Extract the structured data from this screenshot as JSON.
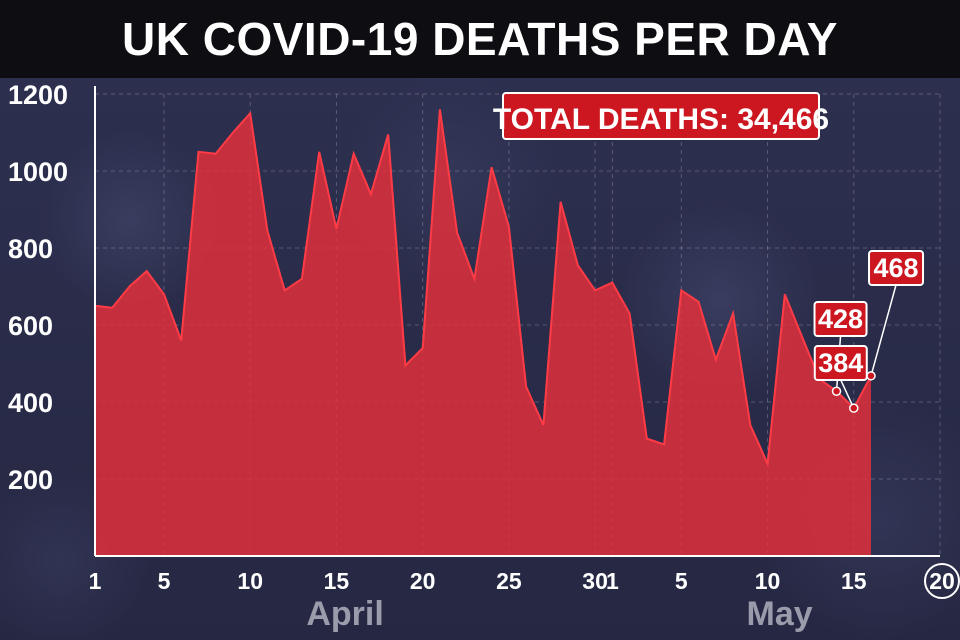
{
  "title": "UK COVID-19 DEATHS PER DAY",
  "total_label": "TOTAL DEATHS: 34,466",
  "colors": {
    "area": "#e8303a",
    "line": "#ff3b45",
    "box": "#cc1720",
    "title_bg": "#0d0d12",
    "bg": "#2b2d4a"
  },
  "chart_data": {
    "type": "area",
    "title": "UK COVID-19 DEATHS PER DAY",
    "xlabel": "",
    "ylabel": "",
    "ylim": [
      0,
      1200
    ],
    "yticks": [
      200,
      400,
      600,
      800,
      1000,
      1200
    ],
    "grid": true,
    "x_ticks": [
      {
        "day": 1,
        "label": "1"
      },
      {
        "day": 5,
        "label": "5"
      },
      {
        "day": 10,
        "label": "10"
      },
      {
        "day": 15,
        "label": "15"
      },
      {
        "day": 20,
        "label": "20"
      },
      {
        "day": 25,
        "label": "25"
      },
      {
        "day": 30,
        "label": "30"
      },
      {
        "day": 31,
        "label": "1"
      },
      {
        "day": 35,
        "label": "5"
      },
      {
        "day": 40,
        "label": "10"
      },
      {
        "day": 45,
        "label": "15"
      },
      {
        "day": 50,
        "label": "20",
        "circled": true
      }
    ],
    "months": [
      {
        "label": "April",
        "day": 15.5
      },
      {
        "label": "May",
        "day": 40.7
      }
    ],
    "days": [
      1,
      2,
      3,
      4,
      5,
      6,
      7,
      8,
      9,
      10,
      11,
      12,
      13,
      14,
      15,
      16,
      17,
      18,
      19,
      20,
      21,
      22,
      23,
      24,
      25,
      26,
      27,
      28,
      29,
      30,
      31,
      32,
      33,
      34,
      35,
      36,
      37,
      38,
      39,
      40,
      41,
      42,
      43,
      44,
      45,
      46
    ],
    "values": [
      650,
      645,
      700,
      740,
      680,
      560,
      1050,
      1045,
      1100,
      1150,
      845,
      690,
      720,
      1050,
      850,
      1045,
      940,
      1095,
      495,
      540,
      1160,
      840,
      720,
      1010,
      855,
      440,
      340,
      920,
      755,
      690,
      710,
      630,
      305,
      290,
      690,
      660,
      510,
      630,
      340,
      240,
      680,
      570,
      460,
      428,
      384,
      468
    ],
    "annotations": [
      {
        "day": 44,
        "value": 428,
        "label": "428"
      },
      {
        "day": 45,
        "value": 384,
        "label": "384"
      },
      {
        "day": 46,
        "value": 468,
        "label": "468"
      }
    ]
  }
}
